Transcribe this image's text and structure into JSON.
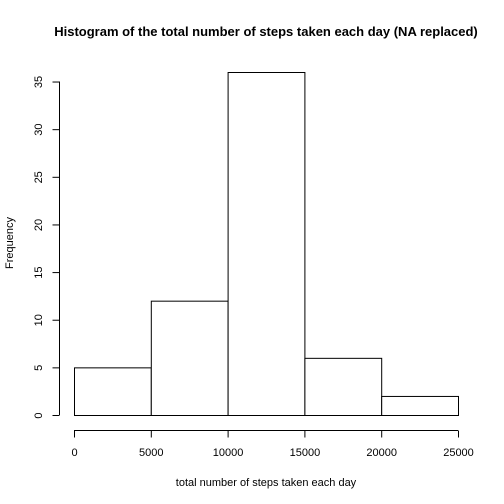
{
  "chart_data": {
    "type": "bar",
    "title": "Histogram of the total number of steps taken each day (NA replaced)",
    "xlabel": "total number of steps taken each day",
    "ylabel": "Frequency",
    "bins": [
      {
        "from": 0,
        "to": 5000,
        "count": 5
      },
      {
        "from": 5000,
        "to": 10000,
        "count": 12
      },
      {
        "from": 10000,
        "to": 15000,
        "count": 36
      },
      {
        "from": 15000,
        "to": 20000,
        "count": 6
      },
      {
        "from": 20000,
        "to": 25000,
        "count": 2
      }
    ],
    "xlim": [
      0,
      25000
    ],
    "ylim": [
      0,
      36
    ],
    "xticks": [
      0,
      5000,
      10000,
      15000,
      20000,
      25000
    ],
    "yticks": [
      0,
      5,
      10,
      15,
      20,
      25,
      30,
      35
    ],
    "grid": false
  }
}
